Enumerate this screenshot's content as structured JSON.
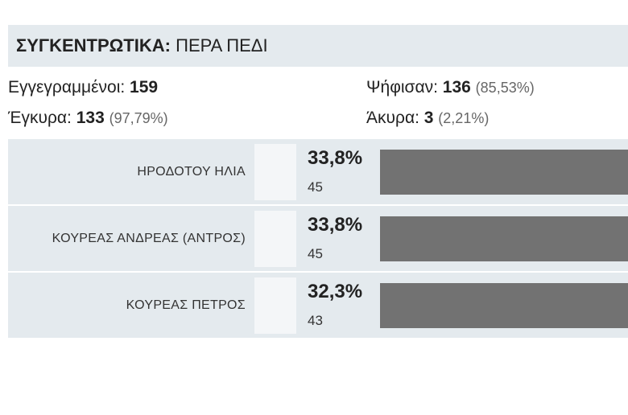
{
  "header": {
    "title_bold": "ΣΥΓΚΕΝΤΡΩΤΙΚΑ:",
    "title_rest": " ΠΕΡΑ ΠΕΔΙ"
  },
  "stats": {
    "registered_label": "Εγγεγραμμένοι: ",
    "registered_value": "159",
    "voted_label": "Ψήφισαν: ",
    "voted_value": "136",
    "voted_pct": "(85,53%)",
    "valid_label": "Έγκυρα: ",
    "valid_value": "133",
    "valid_pct": "(97,79%)",
    "invalid_label": "Άκυρα: ",
    "invalid_value": "3",
    "invalid_pct": "(2,21%)"
  },
  "candidates": [
    {
      "name": "ΗΡΟΔΟΤΟΥ ΗΛΙΑ",
      "percent": "33,8%",
      "votes": "45",
      "share": 0.338
    },
    {
      "name": "ΚΟΥΡΕΑΣ ΑΝΔΡΕΑΣ (ΑΝΤΡΟΣ)",
      "percent": "33,8%",
      "votes": "45",
      "share": 0.338
    },
    {
      "name": "ΚΟΥΡΕΑΣ ΠΕΤΡΟΣ",
      "percent": "32,3%",
      "votes": "43",
      "share": 0.323
    }
  ],
  "colors": {
    "header_bg": "#e4eaee",
    "bar": "#727272"
  }
}
